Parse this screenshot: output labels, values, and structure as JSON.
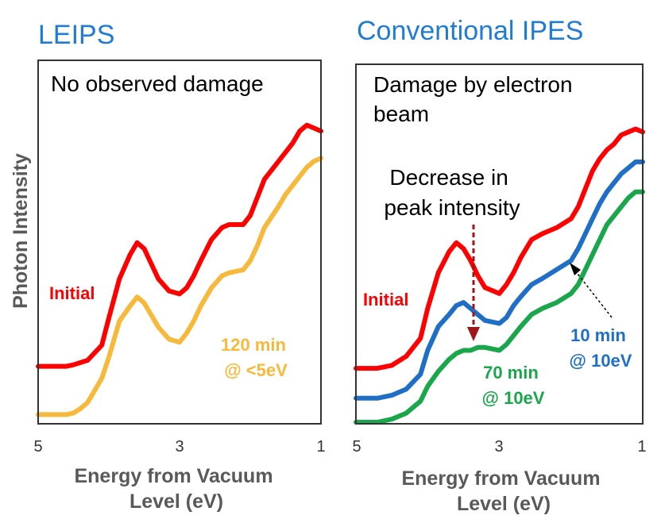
{
  "colors": {
    "title": "#1f7bd6",
    "initial": "#ff0000",
    "after_120min": "#f6b93b",
    "after_10min": "#1f6fc6",
    "after_70min": "#1aa64b",
    "arrow_dark_red": "#a0151a"
  },
  "chart_data": [
    {
      "type": "line",
      "title": "LEIPS",
      "note": "No observed damage",
      "xlabel": "Energy from Vacuum Level (eV)",
      "ylabel": "Photon Intensity",
      "xlim": [
        5,
        1
      ],
      "x_reversed": true,
      "x_ticks": [
        "5",
        "3",
        "1"
      ],
      "y_ticks": [],
      "ylim": [
        0,
        100
      ],
      "series": [
        {
          "name": "Initial",
          "color": "#ff0000",
          "x": [
            5.0,
            4.6,
            4.5,
            4.3,
            4.1,
            4.0,
            3.85,
            3.7,
            3.6,
            3.5,
            3.4,
            3.3,
            3.15,
            3.0,
            2.9,
            2.8,
            2.7,
            2.55,
            2.4,
            2.3,
            2.1,
            2.0,
            1.9,
            1.8,
            1.6,
            1.5,
            1.4,
            1.3,
            1.2,
            1.1,
            1.0
          ],
          "y": [
            18,
            18,
            18.5,
            20,
            25,
            34,
            47,
            55,
            59,
            57,
            52,
            47,
            43,
            42,
            44,
            48,
            53,
            60,
            64,
            65,
            65,
            68,
            74,
            80,
            86,
            89,
            92,
            96,
            98,
            97,
            96
          ]
        },
        {
          "name": "120 min @ <5eV",
          "color": "#f6b93b",
          "x": [
            5.0,
            4.6,
            4.5,
            4.4,
            4.3,
            4.1,
            4.0,
            3.85,
            3.7,
            3.6,
            3.5,
            3.4,
            3.3,
            3.15,
            3.0,
            2.9,
            2.8,
            2.7,
            2.55,
            2.4,
            2.3,
            2.1,
            2.0,
            1.9,
            1.8,
            1.6,
            1.5,
            1.4,
            1.3,
            1.2,
            1.1,
            1.0
          ],
          "y": [
            2,
            2,
            2.5,
            4,
            6,
            14,
            21,
            33,
            38,
            41,
            39,
            35,
            31,
            27,
            26,
            29,
            33,
            38,
            44,
            48,
            49,
            50,
            53,
            58,
            64,
            71,
            75,
            78,
            81,
            84,
            86,
            87
          ]
        }
      ]
    },
    {
      "type": "line",
      "title": "Conventional IPES",
      "note": [
        "Damage by electron",
        "beam"
      ],
      "annotation": [
        "Decrease in",
        "peak intensity"
      ],
      "xlabel": "Energy from Vacuum Level (eV)",
      "ylabel": "",
      "xlim": [
        5,
        1
      ],
      "x_reversed": true,
      "x_ticks": [
        "5",
        "3",
        "1"
      ],
      "y_ticks": [],
      "ylim": [
        0,
        100
      ],
      "series": [
        {
          "name": "Initial",
          "color": "#ff0000",
          "x": [
            5.0,
            4.7,
            4.5,
            4.3,
            4.1,
            4.0,
            3.85,
            3.7,
            3.6,
            3.5,
            3.4,
            3.3,
            3.2,
            3.0,
            2.9,
            2.8,
            2.7,
            2.55,
            2.4,
            2.2,
            2.0,
            1.9,
            1.8,
            1.7,
            1.6,
            1.5,
            1.4,
            1.3,
            1.2,
            1.1,
            1.0
          ],
          "y": [
            18,
            18,
            19,
            22,
            28,
            38,
            50,
            57,
            60,
            58,
            54,
            49,
            45,
            43,
            46,
            50,
            55,
            61,
            63,
            65,
            68,
            72,
            78,
            84,
            88,
            91,
            93,
            96,
            97,
            98,
            97
          ]
        },
        {
          "name": "10 min @ 10eV",
          "color": "#1f6fc6",
          "x": [
            5.0,
            4.7,
            4.5,
            4.3,
            4.1,
            4.0,
            3.85,
            3.7,
            3.6,
            3.5,
            3.4,
            3.3,
            3.2,
            3.0,
            2.9,
            2.8,
            2.7,
            2.55,
            2.4,
            2.2,
            2.0,
            1.9,
            1.8,
            1.7,
            1.6,
            1.5,
            1.4,
            1.3,
            1.2,
            1.1,
            1.0
          ],
          "y": [
            8,
            8,
            9,
            11,
            16,
            24,
            32,
            36,
            39,
            40,
            38,
            36,
            34,
            33,
            35,
            39,
            42,
            46,
            48,
            51,
            54,
            58,
            63,
            68,
            73,
            77,
            80,
            83,
            85,
            87,
            87
          ]
        },
        {
          "name": "70 min @ 10eV",
          "color": "#1aa64b",
          "x": [
            5.0,
            4.7,
            4.5,
            4.3,
            4.1,
            4.0,
            3.85,
            3.7,
            3.6,
            3.5,
            3.4,
            3.3,
            3.2,
            3.0,
            2.9,
            2.8,
            2.7,
            2.55,
            2.4,
            2.2,
            2.0,
            1.9,
            1.8,
            1.7,
            1.6,
            1.5,
            1.4,
            1.3,
            1.2,
            1.1,
            1.0
          ],
          "y": [
            0,
            0,
            1,
            3,
            7,
            12,
            17,
            21,
            23,
            24,
            24,
            25,
            25,
            24,
            26,
            29,
            32,
            36,
            38,
            40,
            43,
            46,
            51,
            56,
            61,
            66,
            69,
            72,
            75,
            77,
            77
          ]
        }
      ]
    }
  ]
}
